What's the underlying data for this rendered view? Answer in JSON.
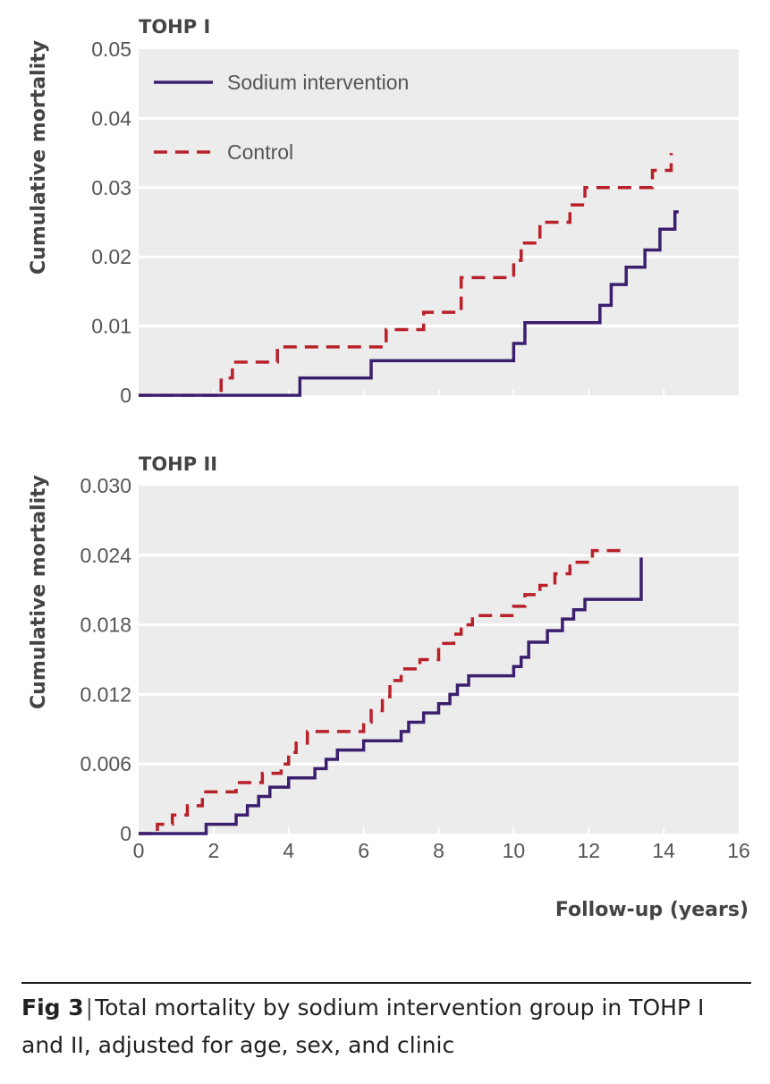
{
  "legend": {
    "sodium": "Sodium intervention",
    "control": "Control"
  },
  "colors": {
    "sodium": "#3b1f6e",
    "control": "#b8202a",
    "panel_bg": "#ececec",
    "grid": "#ffffff"
  },
  "x_axis": {
    "label": "Follow-up (years)"
  },
  "caption": {
    "fig_label": "Fig 3",
    "separator": "|",
    "text": "Total mortality by sodium intervention group in TOHP I and II, adjusted for age, sex, and clinic"
  },
  "chart_data": [
    {
      "type": "line",
      "title": "TOHP I",
      "ylabel": "Cumulative mortality",
      "xlabel": "",
      "xlim": [
        0,
        16
      ],
      "ylim": [
        0,
        0.05
      ],
      "yticks": [
        "0",
        "0.01",
        "0.02",
        "0.03",
        "0.04",
        "0.05"
      ],
      "xticks": [],
      "grid": true,
      "legend_position": "top-left",
      "step": true,
      "series": [
        {
          "name": "Sodium intervention",
          "style": "solid",
          "x": [
            0,
            4.3,
            6.2,
            10.0,
            10.3,
            12.3,
            12.6,
            13.0,
            13.5,
            13.9,
            14.3,
            14.4
          ],
          "y": [
            0,
            0.0025,
            0.005,
            0.0075,
            0.0105,
            0.013,
            0.016,
            0.0185,
            0.021,
            0.024,
            0.0265,
            0.0265
          ]
        },
        {
          "name": "Control",
          "style": "dashed",
          "x": [
            0,
            2.2,
            2.5,
            3.7,
            6.6,
            7.6,
            8.6,
            10.0,
            10.2,
            10.7,
            11.5,
            11.9,
            13.7,
            14.2
          ],
          "y": [
            0,
            0.0025,
            0.0048,
            0.007,
            0.0095,
            0.012,
            0.017,
            0.0195,
            0.022,
            0.025,
            0.0275,
            0.03,
            0.0325,
            0.035
          ]
        }
      ]
    },
    {
      "type": "line",
      "title": "TOHP II",
      "ylabel": "Cumulative mortality",
      "xlabel": "Follow-up (years)",
      "xlim": [
        0,
        16
      ],
      "ylim": [
        0,
        0.03
      ],
      "yticks": [
        "0",
        "0.006",
        "0.012",
        "0.018",
        "0.024",
        "0.030"
      ],
      "xticks": [
        "0",
        "2",
        "4",
        "6",
        "8",
        "10",
        "12",
        "14",
        "16"
      ],
      "grid": true,
      "step": true,
      "series": [
        {
          "name": "Sodium intervention",
          "style": "solid",
          "x": [
            0,
            1.8,
            2.6,
            2.9,
            3.2,
            3.5,
            4.0,
            4.7,
            5.0,
            5.3,
            6.0,
            7.0,
            7.2,
            7.6,
            8.0,
            8.3,
            8.5,
            8.8,
            10.0,
            10.2,
            10.4,
            10.9,
            11.3,
            11.6,
            11.9,
            13.4,
            13.4
          ],
          "y": [
            0,
            0.0008,
            0.0016,
            0.0024,
            0.0032,
            0.004,
            0.0048,
            0.0056,
            0.0064,
            0.0072,
            0.008,
            0.0088,
            0.0096,
            0.0104,
            0.0112,
            0.012,
            0.0128,
            0.0136,
            0.0144,
            0.0152,
            0.0165,
            0.0175,
            0.0185,
            0.0193,
            0.0202,
            0.0202,
            0.0238
          ]
        },
        {
          "name": "Control",
          "style": "dashed",
          "x": [
            0,
            0.5,
            0.9,
            1.3,
            1.7,
            2.6,
            3.3,
            3.8,
            4.0,
            4.2,
            4.5,
            6.0,
            6.2,
            6.5,
            6.7,
            7.0,
            7.5,
            8.0,
            8.4,
            8.6,
            8.9,
            10.0,
            10.3,
            10.7,
            11.1,
            11.5,
            12.1,
            12.8
          ],
          "y": [
            0,
            0.0008,
            0.0016,
            0.0024,
            0.0036,
            0.0044,
            0.0052,
            0.006,
            0.007,
            0.0078,
            0.0088,
            0.0096,
            0.0106,
            0.0118,
            0.0132,
            0.0142,
            0.015,
            0.0164,
            0.0172,
            0.018,
            0.0188,
            0.0196,
            0.0206,
            0.0214,
            0.0224,
            0.0234,
            0.0244,
            0.0252
          ]
        }
      ]
    }
  ]
}
